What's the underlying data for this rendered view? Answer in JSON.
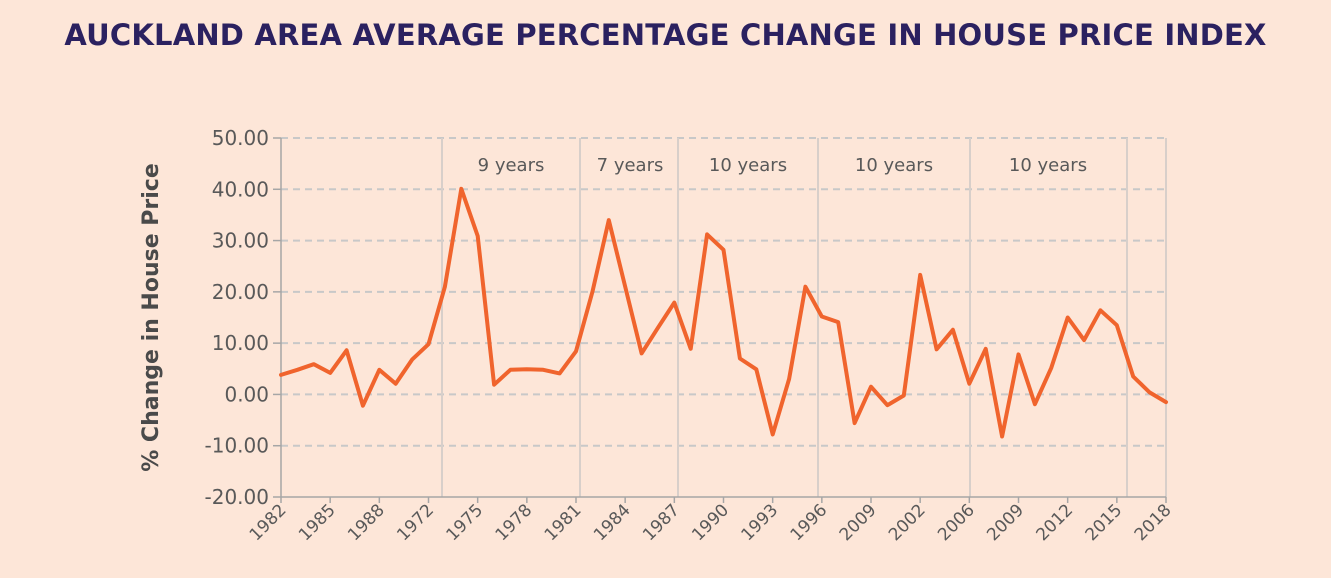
{
  "title": "AUCKLAND AREA AVERAGE PERCENTAGE CHANGE IN HOUSE PRICE INDEX",
  "colors": {
    "background": "#fde6d8",
    "line": "#f0642d",
    "grid": "#c8c8c8",
    "title": "#2b2160",
    "axis": "#a6a6a6"
  },
  "chart_data": {
    "type": "line",
    "title": "AUCKLAND AREA AVERAGE PERCENTAGE CHANGE IN HOUSE PRICE INDEX",
    "xlabel": "",
    "ylabel": "% Change in House Price",
    "ylim": [
      -20,
      50
    ],
    "yticks": [
      "50.00",
      "40.00",
      "30.00",
      "20.00",
      "10.00",
      "0.00",
      "-10.00",
      "-20.00"
    ],
    "xticks": [
      "1982",
      "1985",
      "1988",
      "1972",
      "1975",
      "1978",
      "1981",
      "1984",
      "1987",
      "1990",
      "1993",
      "1996",
      "2009",
      "2002",
      "2006",
      "2009",
      "2012",
      "2015",
      "2018"
    ],
    "grid": "horizontal dashed",
    "period_labels": [
      "9 years",
      "7 years",
      "10 years",
      "10 years",
      "10 years"
    ],
    "values": [
      3.8,
      4.8,
      5.9,
      4.2,
      8.6,
      -2.2,
      4.8,
      2.1,
      6.8,
      9.8,
      21.0,
      40.1,
      30.9,
      1.9,
      4.8,
      4.9,
      4.8,
      4.1,
      8.4,
      20.0,
      34.0,
      21.0,
      8.0,
      13.0,
      17.9,
      8.9,
      31.2,
      28.2,
      7.0,
      4.9,
      -7.8,
      3.0,
      21.0,
      15.2,
      14.1,
      -5.6,
      1.5,
      -2.1,
      -0.2,
      23.3,
      8.8,
      12.6,
      2.1,
      8.9,
      -8.2,
      7.8,
      -1.9,
      5.2,
      15.0,
      10.6,
      16.4,
      13.5,
      3.5,
      0.4,
      -1.5
    ]
  }
}
